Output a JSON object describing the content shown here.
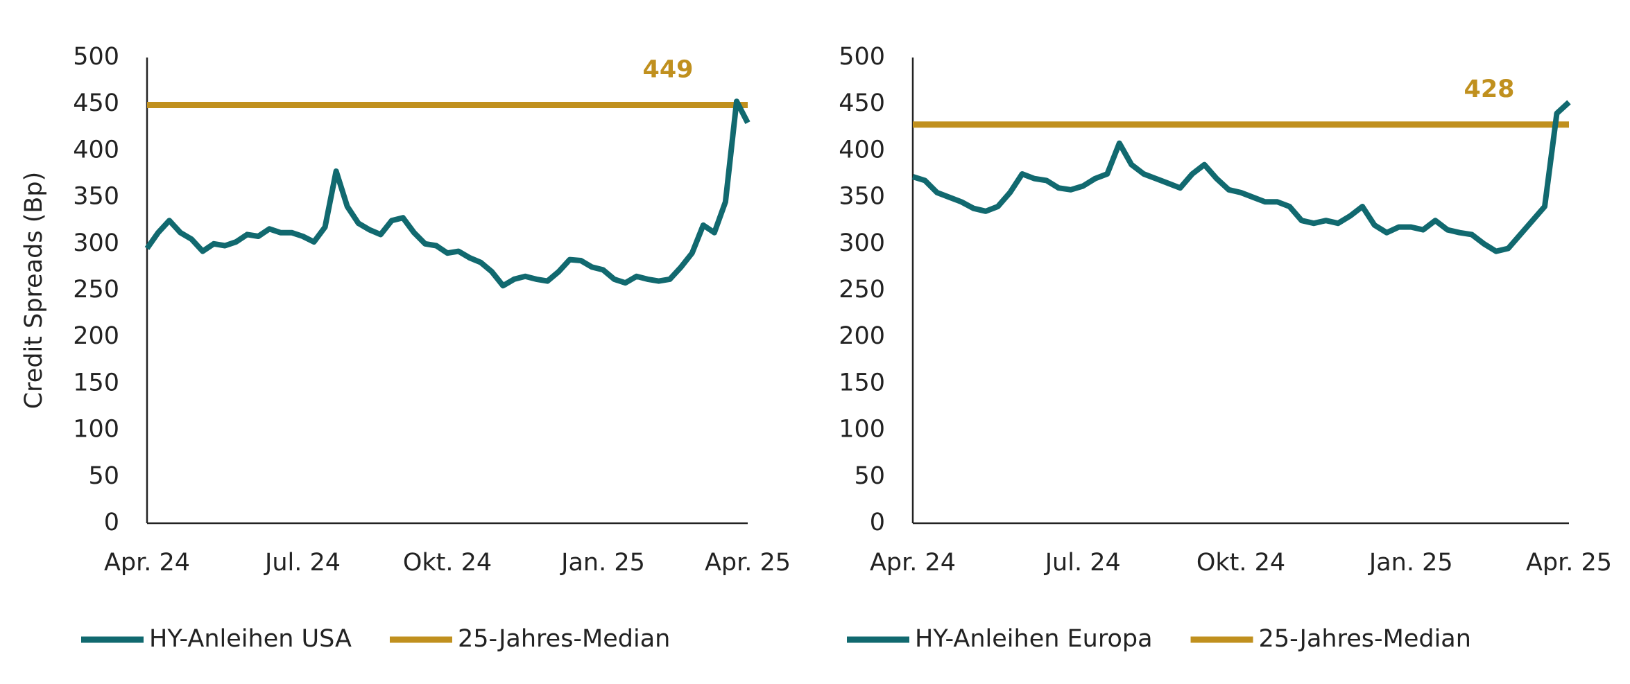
{
  "chart_data": [
    {
      "type": "line",
      "ylabel": "Credit Spreads (Bp)",
      "categories": [
        "Apr. 24",
        null,
        null,
        null,
        null,
        null,
        null,
        null,
        null,
        null,
        null,
        null,
        null,
        null,
        "Jul. 24",
        null,
        null,
        null,
        null,
        null,
        null,
        null,
        null,
        null,
        null,
        null,
        null,
        "Okt. 24",
        null,
        null,
        null,
        null,
        null,
        null,
        null,
        null,
        null,
        null,
        null,
        null,
        null,
        "Jan. 25",
        null,
        null,
        null,
        null,
        null,
        null,
        null,
        null,
        null,
        null,
        null,
        null,
        "Apr. 25"
      ],
      "series": [
        {
          "name": "HY-Anleihen USA",
          "color": "#11696f",
          "values": [
            295,
            312,
            325,
            312,
            305,
            292,
            300,
            298,
            302,
            310,
            308,
            316,
            312,
            312,
            308,
            302,
            318,
            378,
            340,
            322,
            315,
            310,
            325,
            328,
            312,
            300,
            298,
            290,
            292,
            285,
            280,
            270,
            255,
            262,
            265,
            262,
            260,
            270,
            283,
            282,
            275,
            272,
            262,
            258,
            265,
            262,
            260,
            262,
            275,
            290,
            320,
            312,
            345,
            453,
            430
          ]
        }
      ],
      "reference_line": {
        "name": "25-Jahres-Median",
        "value": 449,
        "color": "#c0901e"
      },
      "ylim": [
        0,
        500
      ],
      "yticks": [
        0,
        50,
        100,
        150,
        200,
        250,
        300,
        350,
        400,
        450,
        500
      ]
    },
    {
      "type": "line",
      "categories": [
        "Apr. 24",
        null,
        null,
        null,
        null,
        null,
        null,
        null,
        null,
        null,
        null,
        null,
        null,
        null,
        "Jul. 24",
        null,
        null,
        null,
        null,
        null,
        null,
        null,
        null,
        null,
        null,
        null,
        null,
        "Okt. 24",
        null,
        null,
        null,
        null,
        null,
        null,
        null,
        null,
        null,
        null,
        null,
        null,
        null,
        "Jan. 25",
        null,
        null,
        null,
        null,
        null,
        null,
        null,
        null,
        null,
        null,
        null,
        null,
        "Apr. 25"
      ],
      "series": [
        {
          "name": "HY-Anleihen Europa",
          "color": "#11696f",
          "values": [
            372,
            368,
            355,
            350,
            345,
            338,
            335,
            340,
            355,
            375,
            370,
            368,
            360,
            358,
            362,
            370,
            375,
            408,
            385,
            375,
            370,
            365,
            360,
            375,
            385,
            370,
            358,
            355,
            350,
            345,
            345,
            340,
            325,
            322,
            325,
            322,
            330,
            340,
            320,
            312,
            318,
            318,
            315,
            325,
            315,
            312,
            310,
            300,
            292,
            295,
            310,
            325,
            340,
            440,
            452
          ]
        }
      ],
      "reference_line": {
        "name": "25-Jahres-Median",
        "value": 428,
        "color": "#c0901e"
      },
      "ylim": [
        0,
        500
      ],
      "yticks": [
        0,
        50,
        100,
        150,
        200,
        250,
        300,
        350,
        400,
        450,
        500
      ]
    }
  ]
}
